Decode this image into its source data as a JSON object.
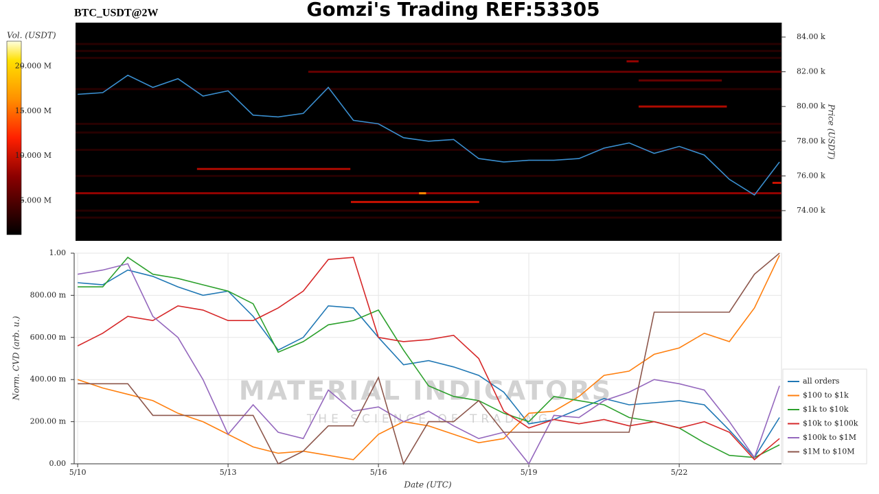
{
  "chart_data": [
    {
      "type": "heatmap",
      "title": "Gomzi's Trading REF:53305",
      "subtitle": "BTC_USDT@2W",
      "ylabel": "Price (USDT)",
      "zlabel": "Vol. (USDT)",
      "color": "#3a8fd0",
      "x": [
        0,
        0.5,
        1,
        1.5,
        2,
        2.5,
        3,
        3.5,
        4,
        4.5,
        5,
        5.5,
        6,
        6.5,
        7,
        7.5,
        8,
        8.5,
        9,
        9.5,
        10,
        10.5,
        11,
        11.5,
        12,
        12.5,
        13,
        13.5,
        14
      ],
      "values": [
        80700,
        80800,
        81800,
        81100,
        81600,
        80600,
        80900,
        79500,
        79400,
        79600,
        81100,
        79200,
        79000,
        78200,
        78000,
        78100,
        77000,
        76800,
        76900,
        76900,
        77000,
        77600,
        77900,
        77300,
        77700,
        77200,
        75800,
        74900,
        76800
      ],
      "xlim": [
        -0.07,
        14.04
      ],
      "ylim": [
        72260,
        84830
      ],
      "yticks": [
        {
          "value": 74000,
          "label": "74.00 k"
        },
        {
          "value": 76000,
          "label": "76.00 k"
        },
        {
          "value": 78000,
          "label": "78.00 k"
        },
        {
          "value": 80000,
          "label": "80.00 k"
        },
        {
          "value": 82000,
          "label": "82.00 k"
        },
        {
          "value": 84000,
          "label": "84.00 k"
        }
      ],
      "zlim": [
        1200000,
        22800000
      ],
      "zticks": [
        {
          "value": 5000000,
          "label": "5.000 M"
        },
        {
          "value": 10000000,
          "label": "10.000 M"
        },
        {
          "value": 15000000,
          "label": "15.000 M"
        },
        {
          "value": 20000000,
          "label": "20.000 M"
        }
      ],
      "levels": {
        "price": [
          83600,
          83200,
          82800,
          81000,
          79000,
          78500,
          77500,
          76000,
          74000,
          73600,
          75000,
          76400,
          74500,
          80000,
          82000,
          81500,
          82600,
          75000,
          75600
        ],
        "volume": [
          3000000,
          3000000,
          3000000,
          3000000,
          3000000,
          3000000,
          3000000,
          3000000,
          3000000,
          3000000,
          8000000,
          9000000,
          10000000,
          9000000,
          6000000,
          6000000,
          8000000,
          16000000,
          10000000
        ],
        "start": [
          -0.07,
          -0.07,
          -0.07,
          -0.07,
          -0.07,
          -0.07,
          -0.07,
          -0.07,
          -0.07,
          -0.07,
          -0.07,
          2.38,
          5.45,
          11.19,
          4.6,
          11.19,
          10.95,
          6.81,
          13.86
        ],
        "end": [
          14.04,
          14.04,
          14.04,
          14.04,
          14.04,
          14.04,
          14.04,
          14.04,
          14.04,
          14.04,
          14.04,
          5.44,
          8.01,
          12.95,
          14.04,
          12.85,
          11.19,
          6.95,
          14.04
        ]
      }
    },
    {
      "type": "line",
      "xlabel": "Date (UTC)",
      "ylabel": "Norm. CVD (arb. u.)",
      "grid": true,
      "legend": "right",
      "watermark": [
        "MATERIAL INDICATORS",
        "THE SCIENCE OF TRADING"
      ],
      "x": [
        0,
        0.5,
        1,
        1.5,
        2,
        2.5,
        3,
        3.5,
        4,
        4.5,
        5,
        5.5,
        6,
        6.5,
        7,
        7.5,
        8,
        8.5,
        9,
        9.5,
        10,
        10.5,
        11,
        11.5,
        12,
        12.5,
        13,
        13.5,
        14
      ],
      "xlim": [
        -0.07,
        14.04
      ],
      "xticks": [
        {
          "value": 0,
          "label": "5/10"
        },
        {
          "value": 3,
          "label": "5/13"
        },
        {
          "value": 6,
          "label": "5/16"
        },
        {
          "value": 9,
          "label": "5/19"
        },
        {
          "value": 12,
          "label": "5/22"
        }
      ],
      "ylim": [
        0,
        1
      ],
      "yticks": [
        {
          "value": 0,
          "label": "0.00"
        },
        {
          "value": 0.2,
          "label": "200.00 m"
        },
        {
          "value": 0.4,
          "label": "400.00 m"
        },
        {
          "value": 0.6,
          "label": "600.00 m"
        },
        {
          "value": 0.8,
          "label": "800.00 m"
        },
        {
          "value": 1,
          "label": "1.00"
        }
      ],
      "series": [
        {
          "name": "all orders",
          "color": "#1f77b4",
          "values": [
            0.86,
            0.85,
            0.92,
            0.89,
            0.84,
            0.8,
            0.82,
            0.7,
            0.54,
            0.6,
            0.75,
            0.74,
            0.6,
            0.47,
            0.49,
            0.46,
            0.42,
            0.34,
            0.19,
            0.21,
            0.26,
            0.31,
            0.28,
            0.29,
            0.3,
            0.28,
            0.16,
            0.03,
            0.22
          ]
        },
        {
          "name": "$100 to $1k",
          "color": "#ff7f0e",
          "values": [
            0.4,
            0.36,
            0.33,
            0.3,
            0.24,
            0.2,
            0.14,
            0.08,
            0.05,
            0.06,
            0.04,
            0.02,
            0.14,
            0.2,
            0.18,
            0.14,
            0.1,
            0.12,
            0.24,
            0.25,
            0.32,
            0.42,
            0.44,
            0.52,
            0.55,
            0.62,
            0.58,
            0.74,
            0.99
          ]
        },
        {
          "name": "$1k to $10k",
          "color": "#2ca02c",
          "values": [
            0.84,
            0.84,
            0.98,
            0.9,
            0.88,
            0.85,
            0.82,
            0.76,
            0.53,
            0.58,
            0.66,
            0.68,
            0.73,
            0.54,
            0.37,
            0.32,
            0.3,
            0.24,
            0.2,
            0.32,
            0.3,
            0.28,
            0.22,
            0.2,
            0.17,
            0.1,
            0.04,
            0.03,
            0.09
          ]
        },
        {
          "name": "$10k to $100k",
          "color": "#d62728",
          "values": [
            0.56,
            0.62,
            0.7,
            0.68,
            0.75,
            0.73,
            0.68,
            0.68,
            0.74,
            0.82,
            0.97,
            0.98,
            0.6,
            0.58,
            0.59,
            0.61,
            0.5,
            0.25,
            0.17,
            0.21,
            0.19,
            0.21,
            0.18,
            0.2,
            0.17,
            0.2,
            0.15,
            0.02,
            0.12
          ]
        },
        {
          "name": "$100k to $1M",
          "color": "#9467bd",
          "values": [
            0.9,
            0.92,
            0.95,
            0.7,
            0.6,
            0.4,
            0.14,
            0.28,
            0.15,
            0.12,
            0.35,
            0.25,
            0.27,
            0.2,
            0.25,
            0.18,
            0.12,
            0.15,
            0.0,
            0.23,
            0.22,
            0.3,
            0.34,
            0.4,
            0.38,
            0.35,
            0.2,
            0.03,
            0.37
          ]
        },
        {
          "name": "$1M to $10M",
          "color": "#8c564b",
          "values": [
            0.38,
            0.38,
            0.38,
            0.23,
            0.23,
            0.23,
            0.23,
            0.23,
            0.0,
            0.06,
            0.18,
            0.18,
            0.41,
            0.0,
            0.2,
            0.2,
            0.3,
            0.15,
            0.15,
            0.15,
            0.15,
            0.15,
            0.15,
            0.72,
            0.72,
            0.72,
            0.72,
            0.9,
            1.0
          ]
        }
      ]
    }
  ]
}
